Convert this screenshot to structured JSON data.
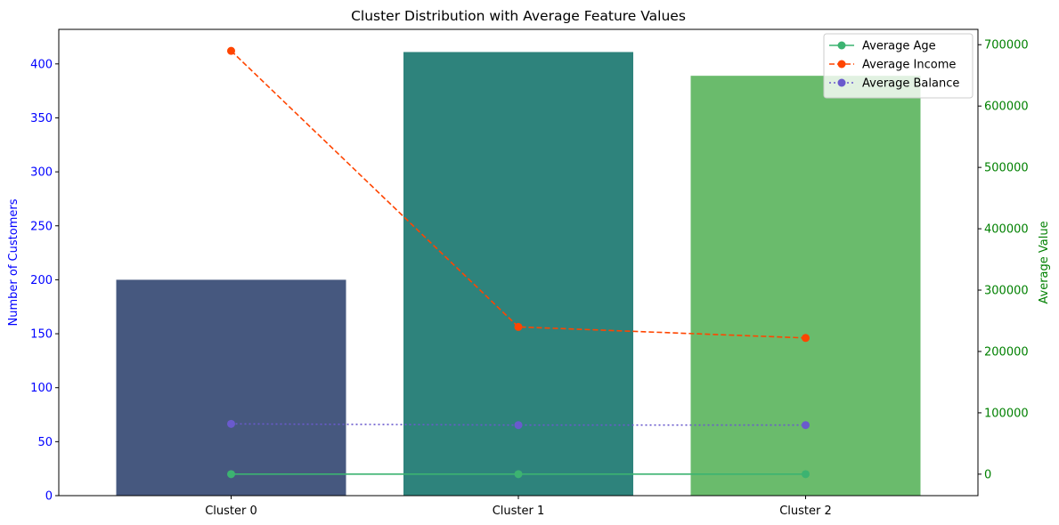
{
  "chart_data": {
    "type": "bar",
    "title": "Cluster Distribution with Average Feature Values",
    "categories": [
      "Cluster 0",
      "Cluster 1",
      "Cluster 2"
    ],
    "bars": {
      "values": [
        200,
        411,
        389
      ],
      "colors": [
        "#46587f",
        "#2e837c",
        "#6abb6c"
      ]
    },
    "ylabel_left": "Number of Customers",
    "ylabel_right": "Average Value",
    "left_axis_color": "#0000ff",
    "right_axis_color": "#008000",
    "ylim_left": [
      0,
      432
    ],
    "ylim_right": [
      -35000,
      725000
    ],
    "left_ticks": [
      0,
      50,
      100,
      150,
      200,
      250,
      300,
      350,
      400
    ],
    "right_ticks": [
      0,
      100000,
      200000,
      300000,
      400000,
      500000,
      600000,
      700000
    ],
    "series": [
      {
        "name": "Average Age",
        "values": [
          45,
          44,
          45
        ],
        "color": "#3cb371",
        "linestyle": "solid"
      },
      {
        "name": "Average Income",
        "values": [
          690000,
          240000,
          222000
        ],
        "color": "#ff4500",
        "linestyle": "dashed"
      },
      {
        "name": "Average Balance",
        "values": [
          82000,
          80000,
          80000
        ],
        "color": "#6a5acd",
        "linestyle": "dotted"
      }
    ],
    "legend_position": "top-right",
    "grid": false
  }
}
